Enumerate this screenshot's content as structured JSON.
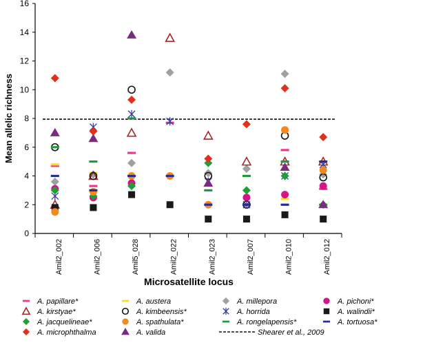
{
  "chart_data": {
    "type": "scatter",
    "title": "",
    "xlabel": "Microsatellite locus",
    "ylabel": "Mean allelic richness",
    "ylim": [
      0,
      16
    ],
    "yticks": [
      0,
      2,
      4,
      6,
      8,
      10,
      12,
      14,
      16
    ],
    "grid": false,
    "legend_placement": "bottom",
    "categories": [
      "Amil2_002",
      "Amil2_006",
      "Amil5_028",
      "Amil2_022",
      "Amil2_023",
      "Amil2_007",
      "Amil2_010",
      "Amil2_012"
    ],
    "reference_line": {
      "name": "Shearer et al., 2009",
      "value": 7.95
    },
    "series": [
      {
        "name": "A. papillare*",
        "marker": "dash",
        "color": "#e8388f",
        "values": [
          4.7,
          3.3,
          5.6,
          7.7,
          null,
          null,
          5.8,
          3.1
        ]
      },
      {
        "name": "A. austera",
        "marker": "dash",
        "color": "#f2e024",
        "values": [
          4.8,
          4.2,
          null,
          null,
          null,
          null,
          2.4,
          null
        ]
      },
      {
        "name": "A. millepora",
        "marker": "diamond",
        "color": "#a0a0a0",
        "values": [
          3.6,
          4.1,
          4.9,
          11.2,
          4.2,
          4.5,
          11.1,
          4.1
        ]
      },
      {
        "name": "A. pichoni*",
        "marker": "circle",
        "color": "#d6148a",
        "values": [
          3.1,
          2.5,
          3.5,
          null,
          null,
          2.5,
          2.7,
          3.3
        ]
      },
      {
        "name": "A. kirstyae*",
        "marker": "open-triangle",
        "color": "#a02828",
        "values": [
          2.0,
          4.0,
          7.0,
          13.6,
          6.8,
          5.0,
          5.0,
          5.0
        ]
      },
      {
        "name": "A. kimbeensis*",
        "marker": "open-circle",
        "color": "#111111",
        "values": [
          6.0,
          4.0,
          10.0,
          null,
          4.0,
          2.0,
          6.8,
          3.9
        ]
      },
      {
        "name": "A. horrida",
        "marker": "asterisk",
        "color": "#3a3aa0",
        "values": [
          2.6,
          7.4,
          8.3,
          7.8,
          3.6,
          2.0,
          4.0,
          4.8
        ]
      },
      {
        "name": "A. walindii*",
        "marker": "square",
        "color": "#1a1a1a",
        "values": [
          1.8,
          1.8,
          2.7,
          2.0,
          1.0,
          1.0,
          1.3,
          1.0
        ]
      },
      {
        "name": "A. jacquelineae*",
        "marker": "diamond",
        "color": "#1fa035",
        "values": [
          3.0,
          2.6,
          3.3,
          null,
          4.9,
          3.0,
          4.0,
          2.0
        ]
      },
      {
        "name": "A. spathulata*",
        "marker": "circle",
        "color": "#f08a20",
        "values": [
          1.5,
          2.9,
          4.0,
          4.0,
          2.0,
          null,
          7.2,
          4.4
        ]
      },
      {
        "name": "A. rongelapensis*",
        "marker": "dash",
        "color": "#1e9a3a",
        "values": [
          6.0,
          5.0,
          8.0,
          null,
          3.0,
          4.0,
          5.0,
          2.0
        ]
      },
      {
        "name": "A. tortuosa*",
        "marker": "dash",
        "color": "#2a2a90",
        "values": [
          4.0,
          3.0,
          4.0,
          4.0,
          2.0,
          2.0,
          2.0,
          5.0
        ]
      },
      {
        "name": "A. microphthalma",
        "marker": "diamond",
        "color": "#e0301e",
        "values": [
          10.8,
          7.1,
          9.3,
          null,
          5.2,
          7.6,
          10.1,
          6.7
        ]
      },
      {
        "name": "A. valida",
        "marker": "triangle",
        "color": "#7a2a80",
        "values": [
          7.0,
          6.6,
          13.8,
          null,
          3.5,
          null,
          4.6,
          2.0
        ]
      }
    ],
    "legend_order": [
      "A. papillare*",
      "A. austera",
      "A. millepora",
      "A. pichoni*",
      "A. kirstyae*",
      "A. kimbeensis*",
      "A. horrida",
      "A. walindii*",
      "A. jacquelineae*",
      "A. spathulata*",
      "A. rongelapensis*",
      "A. tortuosa*",
      "A. microphthalma",
      "A. valida",
      "Shearer et al., 2009"
    ]
  }
}
